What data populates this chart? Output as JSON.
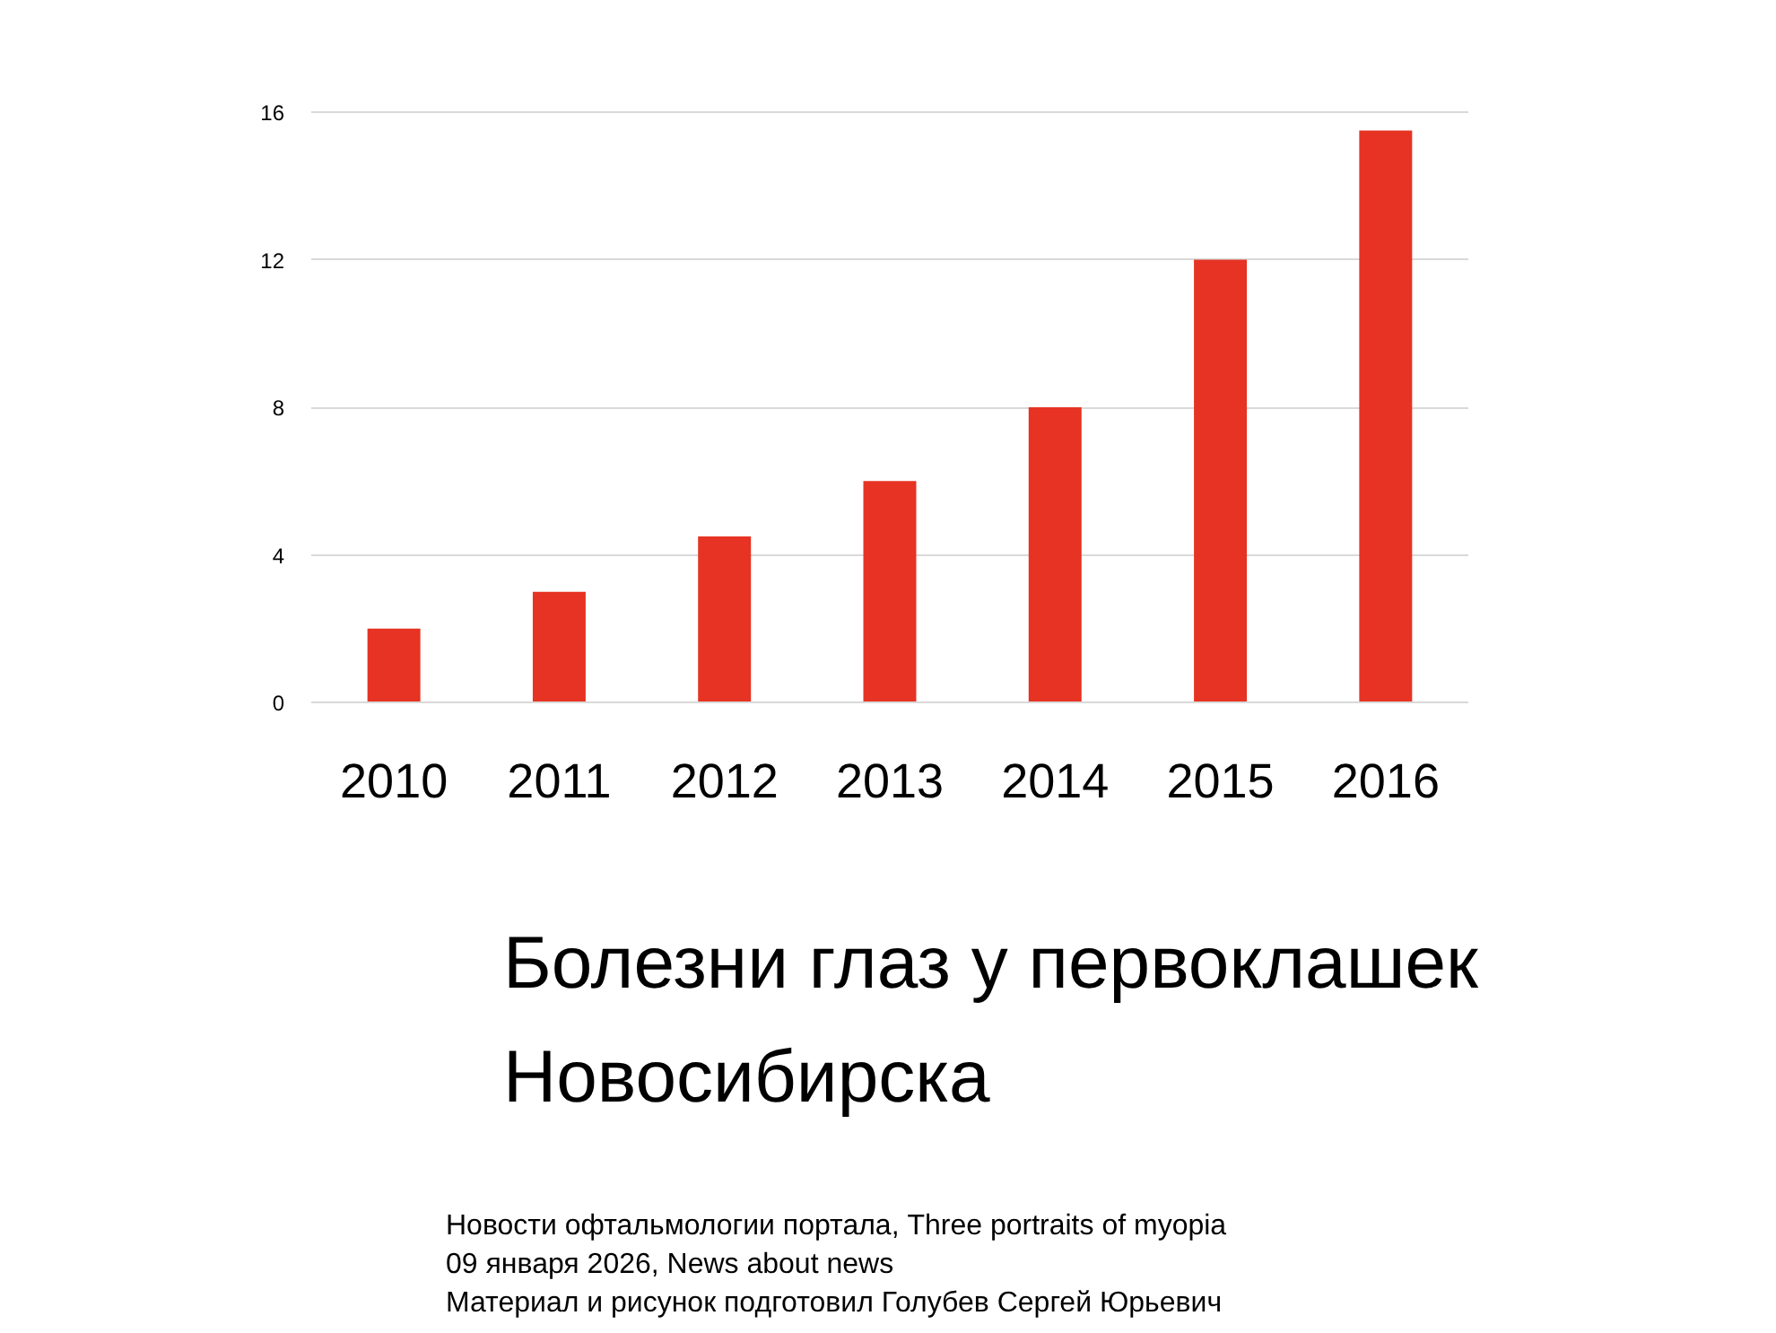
{
  "chart_data": {
    "type": "bar",
    "title": "Болезни глаз у первоклашек\nНовосибирска",
    "categories": [
      "2010",
      "2011",
      "2012",
      "2013",
      "2014",
      "2015",
      "2016"
    ],
    "values": [
      2,
      3,
      4.5,
      6,
      8,
      12,
      15.5
    ],
    "color": "#e63323",
    "ylim": [
      0,
      16
    ],
    "yticks": [
      0,
      4,
      8,
      12,
      16
    ],
    "grid": "y",
    "annotations": [
      "Новости офтальмологии портала, Three portraits of myopia",
      "09 января 2026, News about news",
      "Материал и рисунок подготовил Голубев Сергей Юрьевич"
    ]
  }
}
